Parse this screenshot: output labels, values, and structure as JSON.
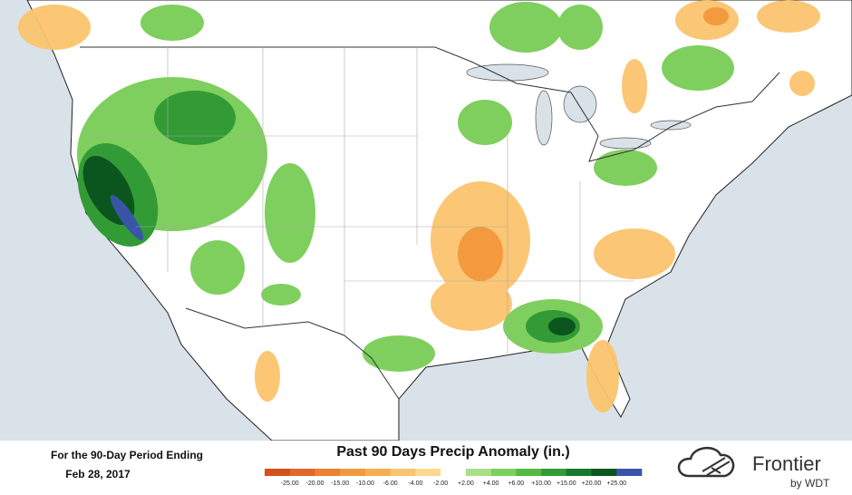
{
  "footer": {
    "period_label": "For the 90-Day Period Ending",
    "date": "Feb 28, 2017"
  },
  "legend": {
    "title": "Past 90 Days Precip Anomaly (in.)",
    "labels": [
      "-25.00",
      "-20.00",
      "-15.00",
      "-10.00",
      "-6.00",
      "-4.00",
      "-2.00",
      "+2.00",
      "+4.00",
      "+6.00",
      "+10.00",
      "+15.00",
      "+20.00",
      "+25.00"
    ],
    "colors": [
      "#d4501a",
      "#e4672a",
      "#ee8030",
      "#f39a3e",
      "#f7ae52",
      "#fbc46e",
      "#fdd98f",
      "#ffffff",
      "#a8e08a",
      "#7fcf5e",
      "#55b944",
      "#329b35",
      "#17792a",
      "#0b561e",
      "#3a55a8"
    ]
  },
  "logo": {
    "name": "Frontier",
    "byline": "by WDT"
  }
}
